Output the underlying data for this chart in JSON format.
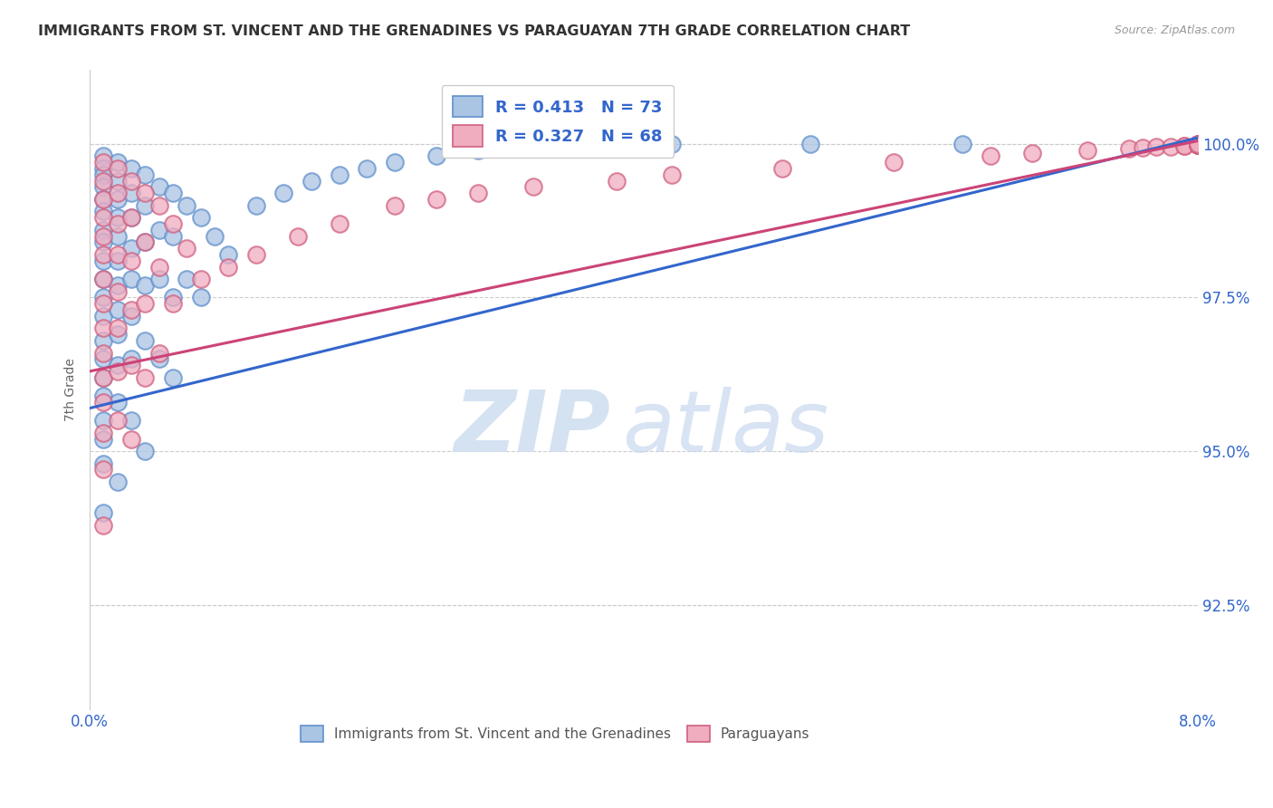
{
  "title": "IMMIGRANTS FROM ST. VINCENT AND THE GRENADINES VS PARAGUAYAN 7TH GRADE CORRELATION CHART",
  "source": "Source: ZipAtlas.com",
  "ylabel": "7th Grade",
  "blue_R": 0.413,
  "blue_N": 73,
  "pink_R": 0.327,
  "pink_N": 68,
  "blue_label": "Immigrants from St. Vincent and the Grenadines",
  "pink_label": "Paraguayans",
  "blue_color": "#aac4e4",
  "pink_color": "#f0adc0",
  "blue_edge_color": "#6090cc",
  "pink_edge_color": "#d06080",
  "blue_line_color": "#3366cc",
  "pink_line_color": "#cc4477",
  "legend_text_color": "#3366cc",
  "background_color": "#ffffff",
  "watermark_zip": "ZIP",
  "watermark_atlas": "atlas",
  "xlim": [
    0.0,
    0.08
  ],
  "ylim": [
    90.8,
    101.2
  ],
  "yticks": [
    92.5,
    95.0,
    97.5,
    100.0
  ],
  "blue_line_x0": 0.0,
  "blue_line_y0": 95.7,
  "blue_line_x1": 0.08,
  "blue_line_y1": 100.1,
  "pink_line_x0": 0.0,
  "pink_line_y0": 96.3,
  "pink_line_x1": 0.08,
  "pink_line_y1": 100.05,
  "blue_points_x": [
    0.001,
    0.001,
    0.001,
    0.001,
    0.001,
    0.001,
    0.001,
    0.001,
    0.001,
    0.001,
    0.001,
    0.001,
    0.001,
    0.001,
    0.001,
    0.001,
    0.001,
    0.001,
    0.001,
    0.001,
    0.002,
    0.002,
    0.002,
    0.002,
    0.002,
    0.002,
    0.002,
    0.002,
    0.002,
    0.002,
    0.002,
    0.002,
    0.003,
    0.003,
    0.003,
    0.003,
    0.003,
    0.003,
    0.003,
    0.003,
    0.004,
    0.004,
    0.004,
    0.004,
    0.004,
    0.004,
    0.005,
    0.005,
    0.005,
    0.005,
    0.006,
    0.006,
    0.006,
    0.006,
    0.007,
    0.007,
    0.008,
    0.008,
    0.009,
    0.01,
    0.012,
    0.014,
    0.016,
    0.018,
    0.02,
    0.022,
    0.025,
    0.028,
    0.032,
    0.038,
    0.042,
    0.052,
    0.063
  ],
  "blue_points_y": [
    99.8,
    99.6,
    99.5,
    99.3,
    99.1,
    98.9,
    98.6,
    98.4,
    98.1,
    97.8,
    97.5,
    97.2,
    96.8,
    96.5,
    96.2,
    95.9,
    95.5,
    95.2,
    94.8,
    94.0,
    99.7,
    99.4,
    99.1,
    98.8,
    98.5,
    98.1,
    97.7,
    97.3,
    96.9,
    96.4,
    95.8,
    94.5,
    99.6,
    99.2,
    98.8,
    98.3,
    97.8,
    97.2,
    96.5,
    95.5,
    99.5,
    99.0,
    98.4,
    97.7,
    96.8,
    95.0,
    99.3,
    98.6,
    97.8,
    96.5,
    99.2,
    98.5,
    97.5,
    96.2,
    99.0,
    97.8,
    98.8,
    97.5,
    98.5,
    98.2,
    99.0,
    99.2,
    99.4,
    99.5,
    99.6,
    99.7,
    99.8,
    99.9,
    100.0,
    100.0,
    100.0,
    100.0,
    100.0
  ],
  "pink_points_x": [
    0.001,
    0.001,
    0.001,
    0.001,
    0.001,
    0.001,
    0.001,
    0.001,
    0.001,
    0.001,
    0.001,
    0.001,
    0.001,
    0.001,
    0.001,
    0.002,
    0.002,
    0.002,
    0.002,
    0.002,
    0.002,
    0.002,
    0.002,
    0.003,
    0.003,
    0.003,
    0.003,
    0.003,
    0.003,
    0.004,
    0.004,
    0.004,
    0.004,
    0.005,
    0.005,
    0.005,
    0.006,
    0.006,
    0.007,
    0.008,
    0.01,
    0.012,
    0.015,
    0.018,
    0.022,
    0.025,
    0.028,
    0.032,
    0.038,
    0.042,
    0.05,
    0.058,
    0.065,
    0.068,
    0.072,
    0.075,
    0.076,
    0.077,
    0.078,
    0.079,
    0.079,
    0.08,
    0.08,
    0.08,
    0.08,
    0.08,
    0.08,
    0.08
  ],
  "pink_points_y": [
    99.7,
    99.4,
    99.1,
    98.8,
    98.5,
    98.2,
    97.8,
    97.4,
    97.0,
    96.6,
    96.2,
    95.8,
    95.3,
    94.7,
    93.8,
    99.6,
    99.2,
    98.7,
    98.2,
    97.6,
    97.0,
    96.3,
    95.5,
    99.4,
    98.8,
    98.1,
    97.3,
    96.4,
    95.2,
    99.2,
    98.4,
    97.4,
    96.2,
    99.0,
    98.0,
    96.6,
    98.7,
    97.4,
    98.3,
    97.8,
    98.0,
    98.2,
    98.5,
    98.7,
    99.0,
    99.1,
    99.2,
    99.3,
    99.4,
    99.5,
    99.6,
    99.7,
    99.8,
    99.85,
    99.9,
    99.92,
    99.94,
    99.95,
    99.96,
    99.97,
    99.97,
    99.98,
    99.98,
    99.99,
    99.99,
    100.0,
    100.0,
    100.0
  ]
}
